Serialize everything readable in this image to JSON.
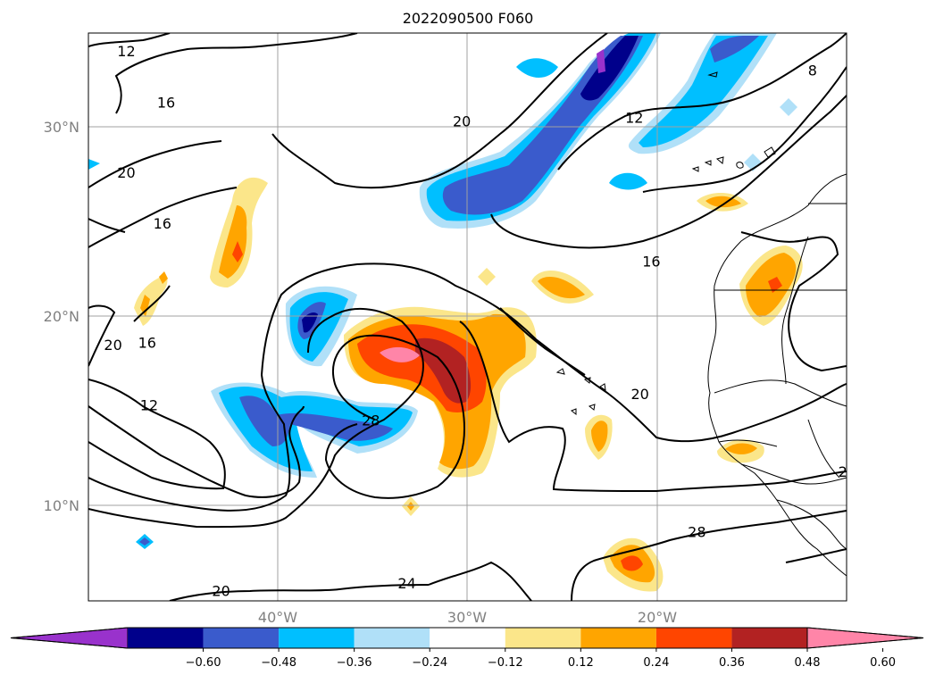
{
  "chart_data": {
    "type": "heatmap",
    "title": "2022090500 F060",
    "map": {
      "lon_range": [
        -50,
        -10
      ],
      "lat_range": [
        5,
        35
      ],
      "lon_ticks": [
        {
          "value": -40,
          "label": "40°W"
        },
        {
          "value": -30,
          "label": "30°W"
        },
        {
          "value": -20,
          "label": "20°W"
        }
      ],
      "lat_ticks": [
        {
          "value": 30,
          "label": "30°N"
        },
        {
          "value": 20,
          "label": "20°N"
        },
        {
          "value": 10,
          "label": "10°N"
        }
      ],
      "grid": true
    },
    "colorbar": {
      "orientation": "horizontal",
      "extend": "both",
      "levels": [
        -0.72,
        -0.6,
        -0.48,
        -0.36,
        -0.24,
        -0.12,
        0.12,
        0.24,
        0.36,
        0.48,
        0.6,
        0.72
      ],
      "colors": [
        "#9932cc",
        "#00008b",
        "#3a5bcc",
        "#00bfff",
        "#b0e0f8",
        "#ffffff",
        "#fbe68a",
        "#ffa500",
        "#ff4500",
        "#b22222",
        "#ff85a8"
      ],
      "tick_labels": [
        "−0.60",
        "−0.48",
        "−0.36",
        "−0.24",
        "−0.12",
        "0.12",
        "0.24",
        "0.36",
        "0.48",
        "0.60"
      ]
    },
    "contour_labels": [
      {
        "text": "12",
        "lon": -48,
        "lat": 34.0
      },
      {
        "text": "16",
        "lon": -45.9,
        "lat": 31.3
      },
      {
        "text": "20",
        "lon": -30.3,
        "lat": 30.3
      },
      {
        "text": "12",
        "lon": -21.2,
        "lat": 30.5
      },
      {
        "text": "8",
        "lon": -11.8,
        "lat": 33.0
      },
      {
        "text": "20",
        "lon": -48.0,
        "lat": 27.6
      },
      {
        "text": "16",
        "lon": -46.1,
        "lat": 24.9
      },
      {
        "text": "16",
        "lon": -20.3,
        "lat": 22.9
      },
      {
        "text": "20",
        "lon": -48.7,
        "lat": 18.5
      },
      {
        "text": "16",
        "lon": -46.9,
        "lat": 18.6
      },
      {
        "text": "20",
        "lon": -20.9,
        "lat": 15.9
      },
      {
        "text": "12",
        "lon": -46.8,
        "lat": 15.3
      },
      {
        "text": "28",
        "lon": -35.1,
        "lat": 14.5
      },
      {
        "text": "2",
        "lon": -10.2,
        "lat": 11.8
      },
      {
        "text": "28",
        "lon": -17.9,
        "lat": 8.6
      },
      {
        "text": "24",
        "lon": -33.2,
        "lat": 5.9
      },
      {
        "text": "20",
        "lon": -43.0,
        "lat": 5.5
      }
    ]
  }
}
